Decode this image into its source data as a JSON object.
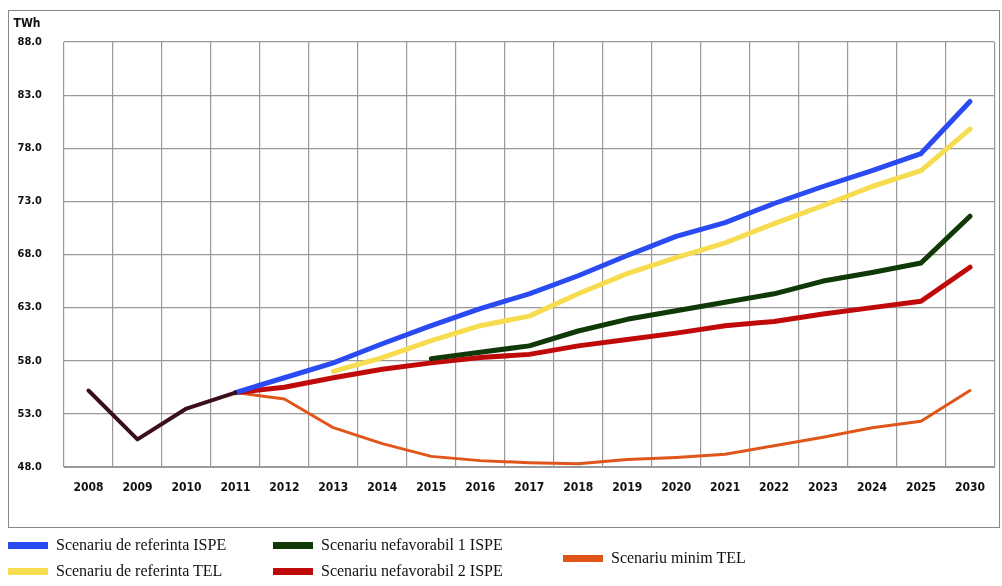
{
  "chart_data": {
    "type": "line",
    "ylabel": "TWh",
    "categories": [
      "2008",
      "2009",
      "2010",
      "2011",
      "2012",
      "2013",
      "2014",
      "2015",
      "2016",
      "2017",
      "2018",
      "2019",
      "2020",
      "2021",
      "2022",
      "2023",
      "2024",
      "2025",
      "2030"
    ],
    "series": [
      {
        "color": "#3a0f1a",
        "values": [
          55.2,
          50.6,
          53.5,
          55.0,
          null,
          null,
          null,
          null,
          null,
          null,
          null,
          null,
          null,
          null,
          null,
          null,
          null,
          null,
          null
        ]
      },
      {
        "name": "Scenariu de referinta ISPE",
        "color": "#2b4bf2",
        "values": [
          null,
          null,
          null,
          55.0,
          56.4,
          57.8,
          59.6,
          61.3,
          62.9,
          64.3,
          66.0,
          67.9,
          69.7,
          71.0,
          72.8,
          74.4,
          75.9,
          77.5,
          82.4
        ]
      },
      {
        "name": "Scenariu de referinta TEL",
        "color": "#f7dc50",
        "values": [
          null,
          null,
          null,
          null,
          null,
          57.0,
          58.3,
          59.9,
          61.3,
          62.2,
          64.3,
          66.2,
          67.7,
          69.1,
          70.9,
          72.6,
          74.4,
          75.9,
          79.8
        ]
      },
      {
        "name": "Scenariu nefavorabil 1 ISPE",
        "color": "#0f3a08",
        "values": [
          null,
          null,
          null,
          null,
          null,
          null,
          null,
          58.2,
          58.8,
          59.4,
          60.8,
          61.9,
          62.7,
          63.5,
          64.3,
          65.5,
          66.3,
          67.2,
          71.6
        ]
      },
      {
        "name": "Scenariu nefavorabil 2 ISPE",
        "color": "#c00a0a",
        "values": [
          null,
          null,
          null,
          55.0,
          55.5,
          56.4,
          57.2,
          57.8,
          58.3,
          58.6,
          59.4,
          60.0,
          60.6,
          61.3,
          61.7,
          62.4,
          63.0,
          63.6,
          66.8
        ]
      },
      {
        "name": "Scenariu minim TEL",
        "color": "#e0561a",
        "values": [
          null,
          null,
          null,
          55.0,
          54.4,
          51.7,
          50.2,
          49.0,
          48.6,
          48.4,
          48.3,
          48.7,
          48.9,
          49.2,
          50.0,
          50.8,
          51.7,
          52.3,
          55.2
        ]
      }
    ],
    "ylim": [
      48,
      88
    ],
    "yticks": [
      {
        "value": 48,
        "label": "48.0"
      },
      {
        "value": 53,
        "label": "53.0"
      },
      {
        "value": 58,
        "label": "58.0"
      },
      {
        "value": 63,
        "label": "63.0"
      },
      {
        "value": 68,
        "label": "68.0"
      },
      {
        "value": 73,
        "label": "73.0"
      },
      {
        "value": 78,
        "label": "78.0"
      },
      {
        "value": 83,
        "label": "83.0"
      },
      {
        "value": 88,
        "label": "88.0"
      }
    ],
    "grid": true,
    "legend": "bottom",
    "marker": "none",
    "line_style": "solid"
  }
}
